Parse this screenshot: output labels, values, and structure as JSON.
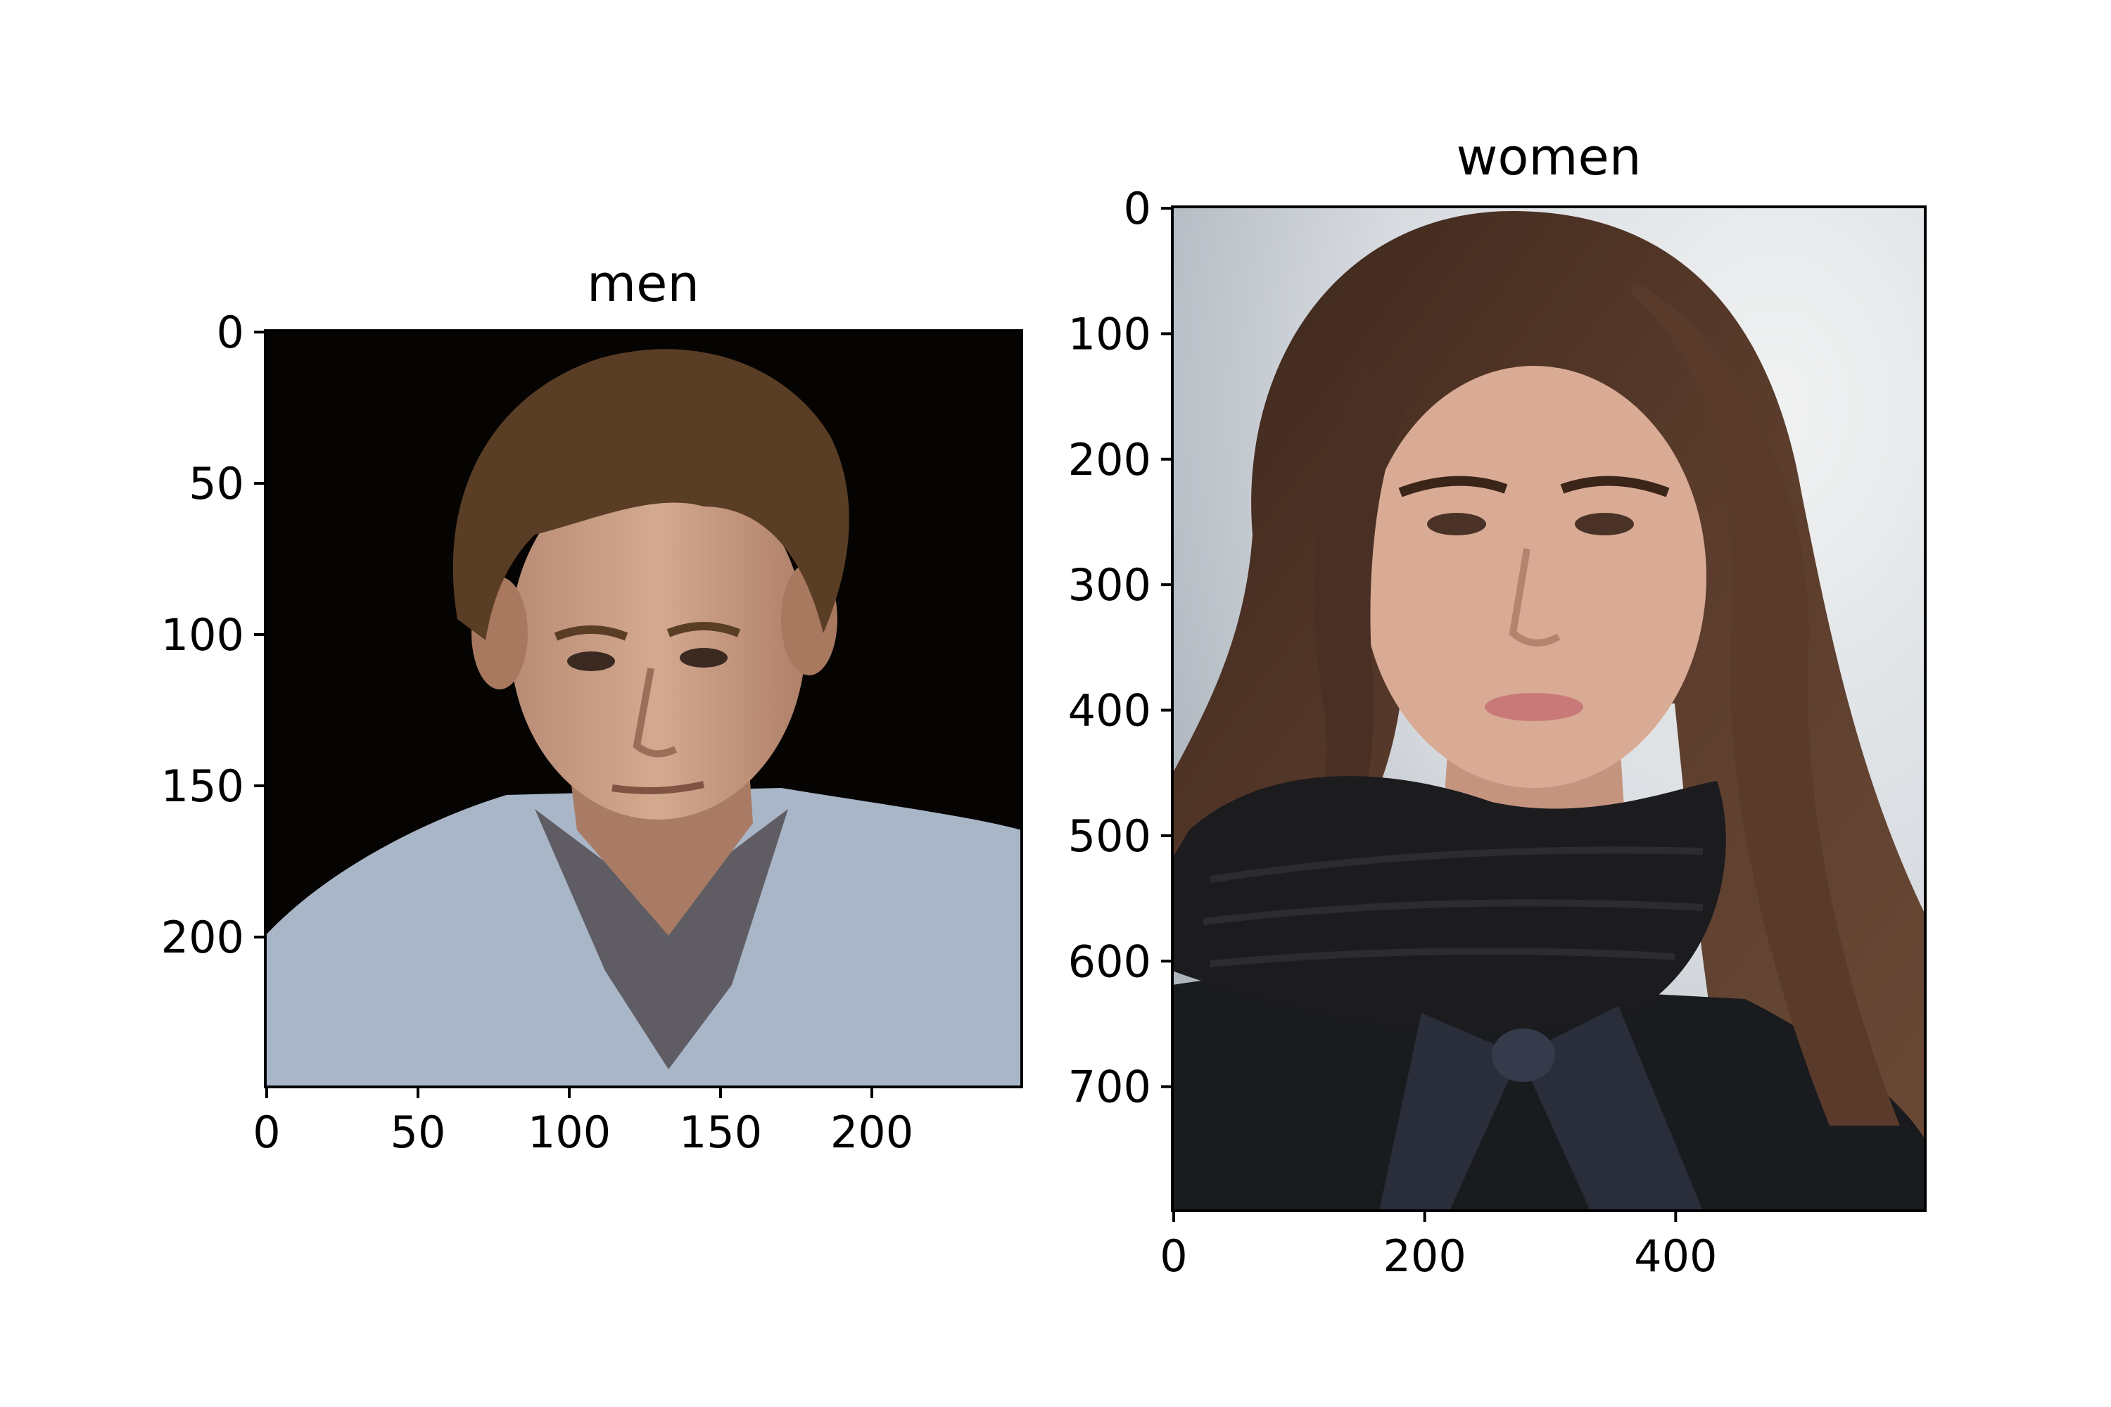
{
  "chart_data": [
    {
      "type": "image",
      "title": "men",
      "xlim": [
        0,
        250
      ],
      "ylim": [
        0,
        250
      ],
      "xticks": [
        0,
        50,
        100,
        150,
        200
      ],
      "yticks": [
        0,
        50,
        100,
        150,
        200
      ],
      "y_inverted": true,
      "image_content": "portrait photo of a man in a light blue shirt on a black background"
    },
    {
      "type": "image",
      "title": "women",
      "xlim": [
        0,
        600
      ],
      "ylim": [
        0,
        800
      ],
      "xticks": [
        0,
        200,
        400
      ],
      "yticks": [
        0,
        100,
        200,
        300,
        400,
        500,
        600,
        700
      ],
      "y_inverted": true,
      "image_content": "portrait photo of a woman with long brown hair and a black knit scarf"
    }
  ],
  "colors": {
    "men_background": "#050403",
    "men_shirt": "#a9b6c8",
    "men_hair": "#5a3d25",
    "men_skin": "#c9a088",
    "women_background": "#d9dde0",
    "women_hair": "#4a3024",
    "women_skin": "#d9ab95",
    "women_scarf": "#1c1c1f"
  }
}
